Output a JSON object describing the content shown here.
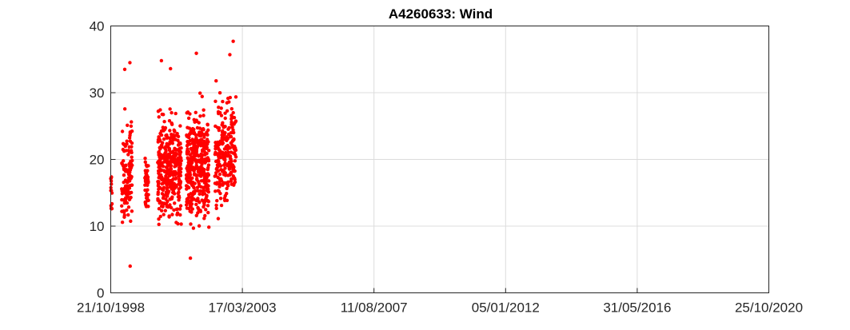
{
  "chart_data": {
    "type": "scatter",
    "title": "A4260633: Wind",
    "xlabel": "",
    "ylabel": "",
    "x_range": [
      "1998-10-21",
      "2020-10-25"
    ],
    "xticks": [
      "21/10/1998",
      "17/03/2003",
      "11/08/2007",
      "05/01/2012",
      "31/05/2016",
      "25/10/2020"
    ],
    "ylim": [
      0,
      40
    ],
    "yticks": [
      "0",
      "10",
      "20",
      "30",
      "40"
    ],
    "grid": true,
    "marker_color": "#ff0000",
    "clusters": [
      {
        "start": "1998-10-21",
        "end": "1998-11-05",
        "min": 10,
        "max": 23.5,
        "count": 14
      },
      {
        "start": "1999-03-01",
        "end": "1999-07-10",
        "min": 4,
        "max": 34.5,
        "count": 120
      },
      {
        "start": "1999-12-10",
        "end": "2000-01-25",
        "min": 11,
        "max": 25.5,
        "count": 45
      },
      {
        "start": "2000-05-15",
        "end": "2001-03-01",
        "min": 5.5,
        "max": 35,
        "count": 360
      },
      {
        "start": "2001-05-01",
        "end": "2002-02-01",
        "min": 5,
        "max": 36,
        "count": 380
      },
      {
        "start": "2002-04-15",
        "end": "2002-12-31",
        "min": 7.5,
        "max": 37.8,
        "count": 240
      }
    ],
    "extremes": [
      {
        "x": "1999-04-10",
        "y": 33.5
      },
      {
        "x": "1999-06-12",
        "y": 34.5
      },
      {
        "x": "1999-06-15",
        "y": 4.0
      },
      {
        "x": "2000-07-01",
        "y": 34.8
      },
      {
        "x": "2000-10-20",
        "y": 33.6
      },
      {
        "x": "2001-09-01",
        "y": 35.9
      },
      {
        "x": "2001-06-20",
        "y": 5.2
      },
      {
        "x": "2002-11-25",
        "y": 37.7
      },
      {
        "x": "2002-10-15",
        "y": 35.7
      }
    ]
  }
}
